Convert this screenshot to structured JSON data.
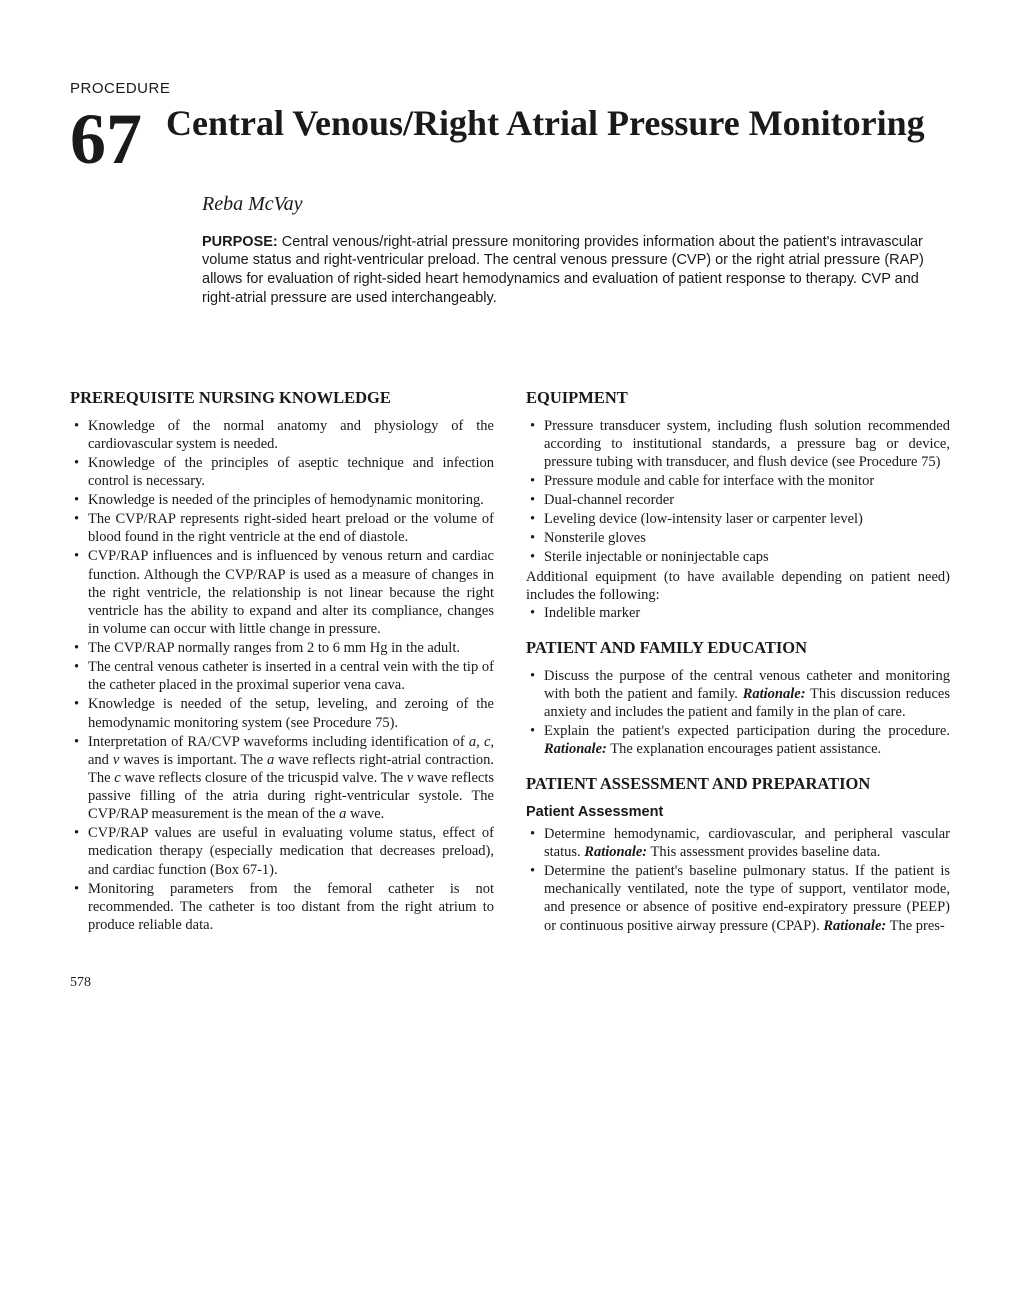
{
  "procedure_label": "PROCEDURE",
  "chapter_number": "67",
  "chapter_title": "Central Venous/Right Atrial Pressure Monitoring",
  "author": "Reba McVay",
  "purpose_label": "PURPOSE:",
  "purpose_text": "Central venous/right-atrial pressure monitoring provides information about the patient's intravascular volume status and right-ventricular preload. The central venous pressure (CVP) or the right atrial pressure (RAP) allows for evaluation of right-sided heart hemodynamics and evaluation of patient response to therapy. CVP and right-atrial pressure are used interchangeably.",
  "left_heading": "PREREQUISITE NURSING KNOWLEDGE",
  "prerequisite_items": [
    "Knowledge of the normal anatomy and physiology of the cardiovascular system is needed.",
    "Knowledge of the principles of aseptic technique and infection control is necessary.",
    "Knowledge is needed of the principles of hemodynamic monitoring.",
    "The CVP/RAP represents right-sided heart preload or the volume of blood found in the right ventricle at the end of diastole.",
    "CVP/RAP influences and is influenced by venous return and cardiac function. Although the CVP/RAP is used as a measure of changes in the right ventricle, the relationship is not linear because the right ventricle has the ability to expand and alter its compliance, changes in volume can occur with little change in pressure.",
    "The CVP/RAP normally ranges from 2 to 6 mm Hg in the adult.",
    "The central venous catheter is inserted in a central vein with the tip of the catheter placed in the proximal superior vena cava.",
    "Knowledge is needed of the setup, leveling, and zeroing of the hemodynamic monitoring system (see Procedure 75).",
    "CVP/RAP values are useful in evaluating volume status, effect of medication therapy (especially medication that decreases preload), and cardiac function (Box 67-1).",
    "Monitoring parameters from the femoral catheter is not recommended. The catheter is too distant from the right atrium to produce reliable data."
  ],
  "waveform_item_prefix": "Interpretation of RA/CVP waveforms including identification of ",
  "waveform_item_mid1": " and ",
  "waveform_item_mid2": " waves is important. The ",
  "waveform_item_mid3": " wave reflects right-atrial contraction. The ",
  "waveform_item_mid4": " wave reflects closure of the tricuspid valve. The ",
  "waveform_item_mid5": " wave reflects passive filling of the atria during right-ventricular systole. The CVP/RAP measurement is the mean of the ",
  "waveform_item_suffix": " wave.",
  "wave_a": "a",
  "wave_c": "c",
  "wave_v": "v",
  "wave_a_c": "a, c,",
  "equipment_heading": "EQUIPMENT",
  "equipment_items": [
    "Pressure transducer system, including flush solution recommended according to institutional standards, a pressure bag or device, pressure tubing with transducer, and flush device (see Procedure 75)",
    "Pressure module and cable for interface with the monitor",
    "Dual-channel recorder",
    "Leveling device (low-intensity laser or carpenter level)",
    "Nonsterile gloves",
    "Sterile injectable or noninjectable caps"
  ],
  "additional_equipment_text": "Additional equipment (to have available depending on patient need) includes the following:",
  "additional_equipment_items": [
    "Indelible marker"
  ],
  "education_heading": "PATIENT AND FAMILY EDUCATION",
  "education_item1_text": "Discuss the purpose of the central venous catheter and monitoring with both the patient and family. ",
  "education_item1_rationale": "This discussion reduces anxiety and includes the patient and family in the plan of care.",
  "education_item2_text": "Explain the patient's expected participation during the procedure. ",
  "education_item2_rationale": "The explanation encourages patient assistance.",
  "rationale_label": "Rationale:",
  "assessment_heading": "PATIENT ASSESSMENT AND PREPARATION",
  "assessment_sub": "Patient Assessment",
  "assessment_item1_text": "Determine hemodynamic, cardiovascular, and peripheral vascular status. ",
  "assessment_item1_rationale": "This assessment provides baseline data.",
  "assessment_item2_text": "Determine the patient's baseline pulmonary status. If the patient is mechanically ventilated, note the type of support, ventilator mode, and presence or absence of positive end-expiratory pressure (PEEP) or continuous positive airway pressure (CPAP). ",
  "assessment_item2_rationale": "The pres-",
  "page_number": "578"
}
